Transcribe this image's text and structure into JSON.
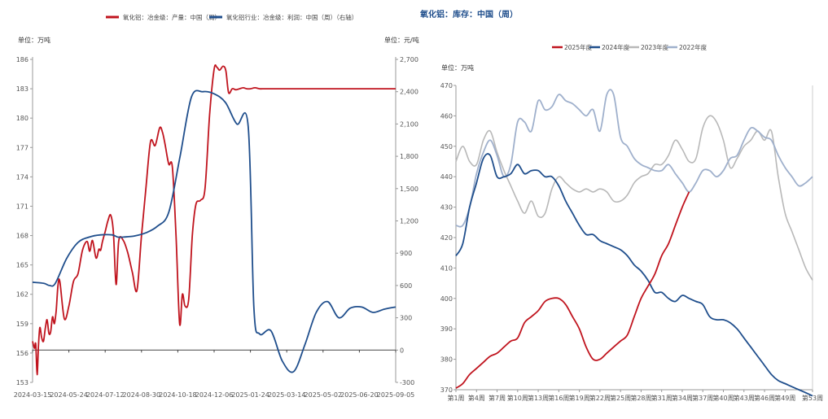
{
  "page_title": "氧化铝：库存：中国（周）",
  "chart_data": [
    {
      "type": "line",
      "title": "",
      "unit_left": "单位：万吨",
      "unit_right": "单位：元/吨",
      "legend_position": "top",
      "x_tick_labels": [
        "2024-03-15",
        "2024-05-24",
        "2024-07-12",
        "2024-08-30",
        "2024-10-18",
        "2024-12-06",
        "2025-01-24",
        "2025-03-14",
        "2025-05-02",
        "2025-06-20",
        "2025-09-05"
      ],
      "ylim_left": [
        153,
        186
      ],
      "yticks_left": [
        153,
        156,
        159,
        162,
        165,
        168,
        171,
        174,
        177,
        180,
        183,
        186
      ],
      "ylim_right": [
        -300,
        2700
      ],
      "yticks_right": [
        -300,
        0,
        300,
        600,
        900,
        1200,
        1500,
        1800,
        2100,
        2400,
        2700
      ],
      "series": [
        {
          "name": "氧化铝：冶金级：产量：中国（周）",
          "color": "#c0141e",
          "axis": "left",
          "x_index": [
            0,
            0.2,
            0.35,
            0.5,
            0.65,
            0.8,
            1,
            1.2,
            1.4,
            1.6,
            1.8,
            2,
            2.2,
            2.4,
            2.6,
            2.8,
            3,
            3.5,
            4,
            4.5,
            5,
            5.5,
            6,
            6.3,
            6.6,
            7,
            7.3,
            7.5,
            7.7,
            8,
            8.3,
            8.6,
            8.9,
            9.2,
            9.5,
            10,
            10.5,
            11,
            11.5,
            12,
            12.5,
            13,
            13.5,
            14,
            14.3,
            14.6,
            15,
            15.4,
            15.8,
            16.2,
            16.5,
            16.8,
            17.2,
            17.6,
            18,
            18.5,
            19,
            19.5,
            20,
            20.3,
            20.6,
            21,
            21.3,
            21.6,
            22,
            22.4,
            22.8,
            23.2,
            23.6,
            24,
            24.5,
            25,
            25.5,
            26,
            26.5,
            27,
            27.5,
            28,
            28.5,
            28.8,
            29.1,
            29.5,
            30,
            30.5,
            31,
            31.5,
            32,
            32.3,
            32.6,
            33,
            33.5,
            34,
            34.5,
            35,
            35.5,
            36,
            36.5,
            37,
            37.5,
            38,
            38.3,
            38.6,
            39,
            39.5,
            40
          ],
          "values": [
            157.2,
            156.5,
            156.9,
            153.8,
            156.7,
            158.6,
            157.6,
            157.2,
            158.5,
            159.4,
            158.0,
            158.2,
            159.7,
            159.0,
            160.3,
            162.9,
            163.3,
            159.5,
            160.8,
            163.3,
            164.1,
            166.5,
            167.4,
            166.4,
            167.5,
            165.7,
            166.6,
            166.5,
            167.4,
            168.4,
            169.5,
            170.1,
            168.4,
            163.0,
            167.5,
            167.5,
            166.2,
            164.2,
            162.4,
            168.0,
            173.0,
            177.6,
            177.2,
            179.0,
            178.6,
            177.3,
            175.3,
            175.0,
            168.0,
            159.0,
            162.0,
            160.8,
            161.5,
            168.0,
            171.2,
            171.6,
            172.8,
            180.3,
            185.0,
            185.2,
            184.9,
            185.3,
            184.8,
            182.6,
            183.0,
            182.9,
            183.0,
            183.1,
            183.0,
            183.0,
            183.1,
            183.0,
            183.0,
            183.0,
            183.0,
            183.0,
            183.0,
            183.0,
            183.0,
            183.0,
            183.0,
            183.0,
            183.0,
            183.0,
            183.0,
            183.0,
            183.0,
            183.0,
            183.0,
            183.0,
            183.0,
            183.0,
            183.0,
            183.0,
            183.0,
            183.0,
            183.0,
            183.0,
            183.0,
            183.0,
            183.0,
            183.0,
            183.0,
            183.0,
            183.0
          ]
        },
        {
          "name": "氧化铝行业：冶金级：利润：中国（周）（右轴）",
          "color": "#1f4e8c",
          "axis": "right",
          "points": [
            [
              0,
              630
            ],
            [
              1,
              620
            ],
            [
              1.5,
              600
            ],
            [
              2,
              620
            ],
            [
              3,
              850
            ],
            [
              4,
              1000
            ],
            [
              5,
              1050
            ],
            [
              6,
              1070
            ],
            [
              7,
              1070
            ],
            [
              7.5,
              1050
            ],
            [
              8,
              1050
            ],
            [
              9,
              1060
            ],
            [
              10,
              1090
            ],
            [
              11,
              1150
            ],
            [
              12,
              1280
            ],
            [
              13,
              1800
            ],
            [
              14,
              2350
            ],
            [
              15,
              2400
            ],
            [
              16,
              2380
            ],
            [
              17,
              2300
            ],
            [
              18,
              2100
            ],
            [
              19,
              2080
            ],
            [
              19.5,
              400
            ],
            [
              20,
              150
            ],
            [
              21,
              180
            ],
            [
              22,
              -100
            ],
            [
              23,
              -200
            ],
            [
              24,
              50
            ],
            [
              25,
              350
            ],
            [
              26,
              450
            ],
            [
              27,
              300
            ],
            [
              28,
              390
            ],
            [
              29,
              400
            ],
            [
              30,
              350
            ],
            [
              31,
              380
            ],
            [
              32,
              400
            ]
          ]
        }
      ]
    },
    {
      "type": "line",
      "title": "",
      "unit": "单位：万吨",
      "legend_position": "top",
      "ylim": [
        370,
        470
      ],
      "yticks": [
        370,
        380,
        390,
        400,
        410,
        420,
        430,
        440,
        450,
        460,
        470
      ],
      "x_tick_labels": [
        "第1周",
        "第4周",
        "第7周",
        "第10周",
        "第13周",
        "第16周",
        "第19周",
        "第22周",
        "第25周",
        "第28周",
        "第31周",
        "第34周",
        "第37周",
        "第40周",
        "第43周",
        "第46周",
        "第49周",
        "第53周"
      ],
      "x_tick_weeks": [
        1,
        4,
        7,
        10,
        13,
        16,
        19,
        22,
        25,
        28,
        31,
        34,
        37,
        40,
        43,
        46,
        49,
        53
      ],
      "series": [
        {
          "name": "2025年度",
          "color": "#c0141e",
          "weeks": [
            1,
            2,
            3,
            4,
            5,
            6,
            7,
            8,
            9,
            10,
            11,
            12,
            13,
            14,
            15,
            16,
            17,
            18,
            19,
            20,
            21,
            22,
            23,
            24,
            25,
            26,
            27,
            28,
            29,
            30,
            31,
            32,
            33,
            34,
            35
          ],
          "values": [
            370.5,
            372,
            375,
            377,
            379,
            381,
            382,
            384,
            386,
            387,
            392,
            394,
            396,
            399,
            400,
            400,
            398,
            394,
            390,
            384,
            380,
            380,
            382,
            384,
            386,
            388,
            394,
            400,
            404,
            408,
            414,
            418,
            424,
            430,
            435
          ]
        },
        {
          "name": "2024年度",
          "color": "#1f4e8c",
          "weeks": [
            1,
            2,
            3,
            4,
            5,
            6,
            7,
            8,
            9,
            10,
            11,
            12,
            13,
            14,
            15,
            16,
            17,
            18,
            19,
            20,
            21,
            22,
            23,
            24,
            25,
            26,
            27,
            28,
            29,
            30,
            31,
            32,
            33,
            34,
            35,
            36,
            37,
            38,
            39,
            40,
            41,
            42,
            43,
            44,
            45,
            46,
            47,
            48,
            49,
            50,
            51,
            52,
            53
          ],
          "values": [
            414,
            418,
            430,
            438,
            446,
            447,
            440,
            440,
            441,
            444,
            441,
            442,
            442,
            440,
            440,
            437,
            432,
            428,
            424,
            421,
            421,
            419,
            418,
            417,
            416,
            414,
            411,
            409,
            406,
            402,
            402,
            400,
            399,
            401,
            400,
            399,
            398,
            394,
            393,
            393,
            392,
            390,
            387,
            384,
            381,
            378,
            375,
            373,
            372,
            371,
            370,
            369,
            368
          ]
        },
        {
          "name": "2023年度",
          "color": "#b8b8b8",
          "weeks": [
            1,
            2,
            3,
            4,
            5,
            6,
            7,
            8,
            9,
            10,
            11,
            12,
            13,
            14,
            15,
            16,
            17,
            18,
            19,
            20,
            21,
            22,
            23,
            24,
            25,
            26,
            27,
            28,
            29,
            30,
            31,
            32,
            33,
            34,
            35,
            36,
            37,
            38,
            39,
            40,
            41,
            42,
            43,
            44,
            45,
            46,
            47,
            48,
            49,
            50,
            51,
            52,
            53
          ],
          "values": [
            445,
            450,
            445,
            444,
            452,
            455,
            448,
            442,
            437,
            432,
            428,
            432,
            427,
            428,
            436,
            440,
            438,
            436,
            435,
            436,
            435,
            436,
            435,
            432,
            432,
            434,
            438,
            440,
            441,
            444,
            444,
            447,
            452,
            449,
            445,
            446,
            456,
            460,
            458,
            452,
            443,
            446,
            450,
            452,
            455,
            452,
            455,
            440,
            428,
            422,
            416,
            410,
            406
          ]
        }
      ],
      "series_2022": {
        "name": "2022年度",
        "color": "#9fb0cc",
        "weeks": [
          1,
          2,
          3,
          4,
          5,
          6,
          7,
          8,
          9,
          10,
          11,
          12,
          13,
          14,
          15,
          16,
          17,
          18,
          19,
          20,
          21,
          22,
          23,
          24,
          25,
          26,
          27,
          28,
          29,
          30,
          31,
          32,
          33,
          34,
          35,
          36,
          37,
          38,
          39,
          40,
          41,
          42,
          43,
          44,
          45,
          46,
          47,
          48,
          49,
          50,
          51,
          52,
          53
        ],
        "values": [
          424,
          424,
          430,
          441,
          448,
          452,
          447,
          440,
          444,
          458,
          458,
          455,
          465,
          462,
          463,
          467,
          465,
          464,
          462,
          460,
          462,
          455,
          467,
          467,
          453,
          450,
          446,
          444,
          443,
          442,
          442,
          444,
          441,
          438,
          435,
          438,
          442,
          442,
          440,
          442,
          446,
          447,
          452,
          456,
          455,
          453,
          452,
          447,
          443,
          440,
          437,
          438,
          440
        ]
      }
    }
  ],
  "legend_left": [
    {
      "label": "氧化铝：冶金级：产量：中国（周）",
      "color": "#c0141e"
    },
    {
      "label": "氧化铝行业：冶金级：利润：中国（周）（右轴）",
      "color": "#1f4e8c"
    }
  ],
  "legend_right": [
    {
      "label": "2025年度",
      "color": "#c0141e"
    },
    {
      "label": "2024年度",
      "color": "#1f4e8c"
    },
    {
      "label": "2023年度",
      "color": "#b8b8b8"
    },
    {
      "label": "2022年度",
      "color": "#9fb0cc"
    }
  ]
}
